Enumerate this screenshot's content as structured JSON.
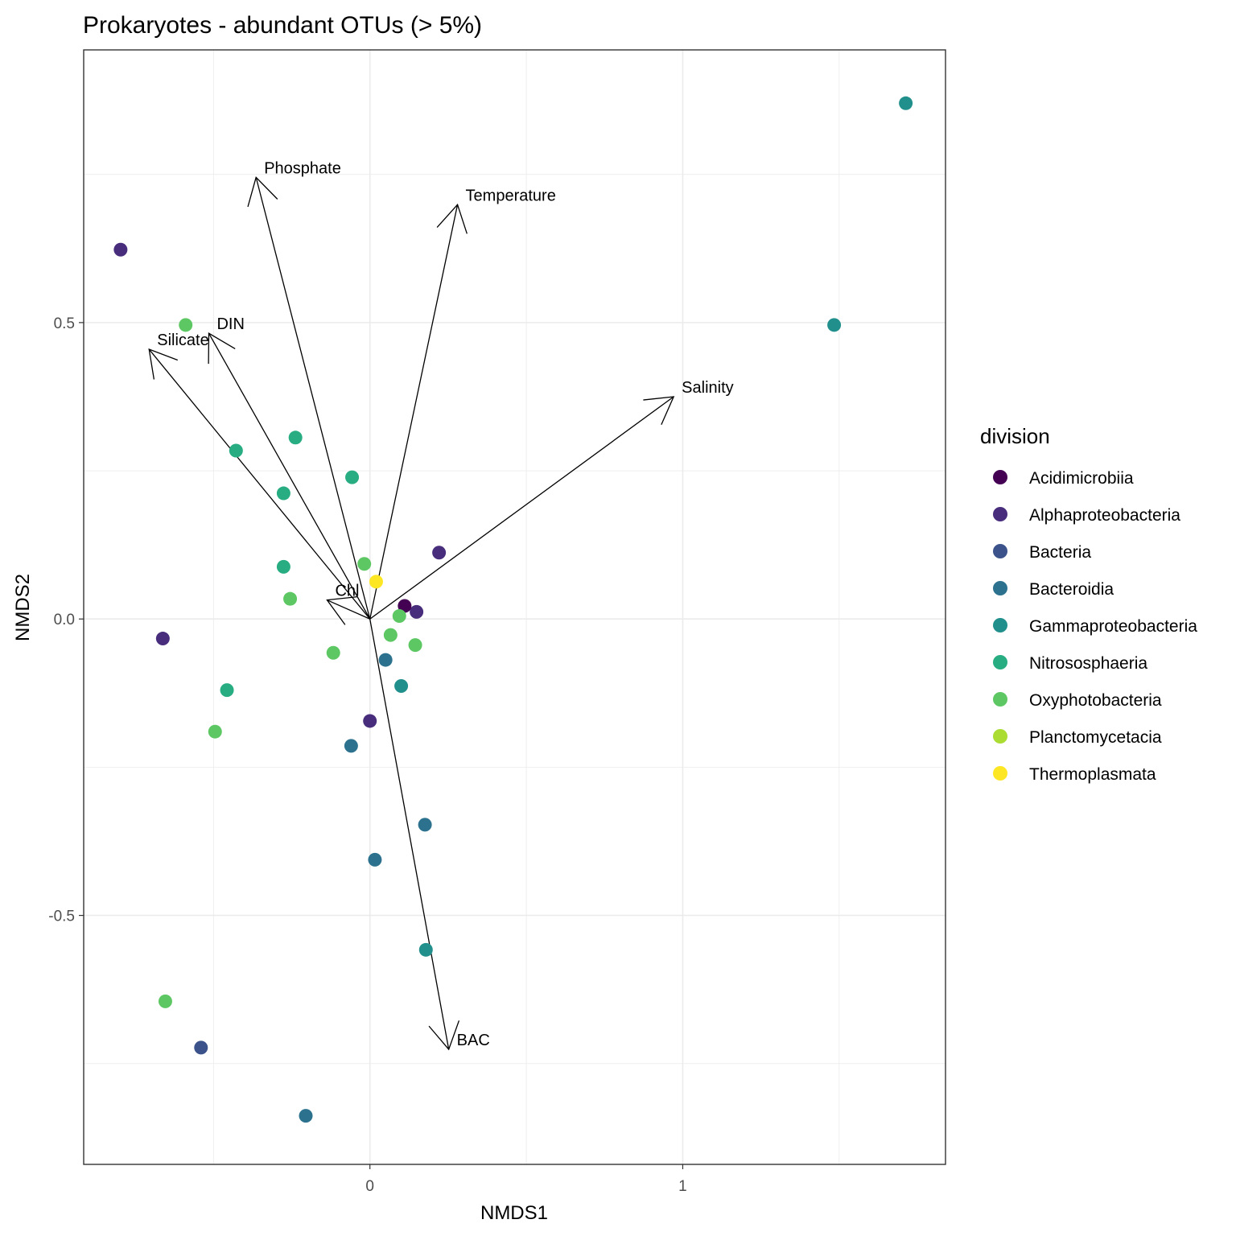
{
  "chart_data": {
    "type": "scatter",
    "title": "Prokaryotes - abundant OTUs (> 5%)",
    "xlabel": "NMDS1",
    "ylabel": "NMDS2",
    "xlim": [
      -0.915,
      1.84
    ],
    "ylim": [
      -0.92,
      0.96
    ],
    "xticks": [
      0,
      1
    ],
    "xtick_labels": [
      "0",
      "1"
    ],
    "yticks": [
      -0.5,
      0.0,
      0.5
    ],
    "ytick_labels": [
      "-0.5",
      "0.0",
      "0.5"
    ],
    "grid": true,
    "legend": {
      "title": "division",
      "position": "right",
      "entries": [
        {
          "name": "Acidimicrobiia",
          "color": "#440154"
        },
        {
          "name": "Alphaproteobacteria",
          "color": "#472D7B"
        },
        {
          "name": "Bacteria",
          "color": "#3B528B"
        },
        {
          "name": "Bacteroidia",
          "color": "#2C728E"
        },
        {
          "name": "Gammaproteobacteria",
          "color": "#21908C"
        },
        {
          "name": "Nitrososphaeria",
          "color": "#27AD81"
        },
        {
          "name": "Oxyphotobacteria",
          "color": "#5DC863"
        },
        {
          "name": "Planctomycetacia",
          "color": "#AADC32"
        },
        {
          "name": "Thermoplasmata",
          "color": "#FDE725"
        }
      ]
    },
    "points": [
      {
        "x": 1.713,
        "y": 0.87,
        "division": "Gammaproteobacteria"
      },
      {
        "x": 1.484,
        "y": 0.496,
        "division": "Gammaproteobacteria"
      },
      {
        "x": 0.179,
        "y": -0.558,
        "division": "Gammaproteobacteria"
      },
      {
        "x": 0.1,
        "y": -0.113,
        "division": "Gammaproteobacteria"
      },
      {
        "x": -0.797,
        "y": 0.623,
        "division": "Alphaproteobacteria"
      },
      {
        "x": -0.662,
        "y": -0.033,
        "division": "Alphaproteobacteria"
      },
      {
        "x": 0.221,
        "y": 0.112,
        "division": "Alphaproteobacteria"
      },
      {
        "x": 0.149,
        "y": 0.012,
        "division": "Alphaproteobacteria"
      },
      {
        "x": 0.0,
        "y": -0.172,
        "division": "Alphaproteobacteria"
      },
      {
        "x": 0.111,
        "y": 0.022,
        "division": "Acidimicrobiia"
      },
      {
        "x": -0.54,
        "y": -0.723,
        "division": "Bacteria"
      },
      {
        "x": -0.205,
        "y": -0.838,
        "division": "Bacteroidia"
      },
      {
        "x": 0.05,
        "y": -0.069,
        "division": "Bacteroidia"
      },
      {
        "x": -0.06,
        "y": -0.214,
        "division": "Bacteroidia"
      },
      {
        "x": 0.176,
        "y": -0.347,
        "division": "Bacteroidia"
      },
      {
        "x": 0.016,
        "y": -0.406,
        "division": "Bacteroidia"
      },
      {
        "x": -0.428,
        "y": 0.284,
        "division": "Nitrososphaeria"
      },
      {
        "x": -0.238,
        "y": 0.306,
        "division": "Nitrososphaeria"
      },
      {
        "x": -0.276,
        "y": 0.212,
        "division": "Nitrososphaeria"
      },
      {
        "x": -0.057,
        "y": 0.239,
        "division": "Nitrososphaeria"
      },
      {
        "x": -0.276,
        "y": 0.088,
        "division": "Nitrososphaeria"
      },
      {
        "x": -0.457,
        "y": -0.12,
        "division": "Nitrososphaeria"
      },
      {
        "x": -0.589,
        "y": 0.496,
        "division": "Oxyphotobacteria"
      },
      {
        "x": -0.018,
        "y": 0.093,
        "division": "Oxyphotobacteria"
      },
      {
        "x": -0.255,
        "y": 0.034,
        "division": "Oxyphotobacteria"
      },
      {
        "x": 0.094,
        "y": 0.005,
        "division": "Oxyphotobacteria"
      },
      {
        "x": 0.066,
        "y": -0.027,
        "division": "Oxyphotobacteria"
      },
      {
        "x": 0.145,
        "y": -0.044,
        "division": "Oxyphotobacteria"
      },
      {
        "x": -0.117,
        "y": -0.057,
        "division": "Oxyphotobacteria"
      },
      {
        "x": -0.495,
        "y": -0.19,
        "division": "Oxyphotobacteria"
      },
      {
        "x": -0.654,
        "y": -0.645,
        "division": "Oxyphotobacteria"
      },
      {
        "x": 0.02,
        "y": 0.063,
        "division": "Thermoplasmata"
      }
    ],
    "vectors": [
      {
        "label": "Phosphate",
        "x": -0.364,
        "y": 0.745
      },
      {
        "label": "Temperature",
        "x": 0.28,
        "y": 0.699
      },
      {
        "label": "DIN",
        "x": -0.515,
        "y": 0.482
      },
      {
        "label": "Silicate",
        "x": -0.706,
        "y": 0.455
      },
      {
        "label": "Salinity",
        "x": 0.971,
        "y": 0.375
      },
      {
        "label": "Chl",
        "x": -0.137,
        "y": 0.032
      },
      {
        "label": "BAC",
        "x": 0.252,
        "y": -0.726
      }
    ]
  }
}
